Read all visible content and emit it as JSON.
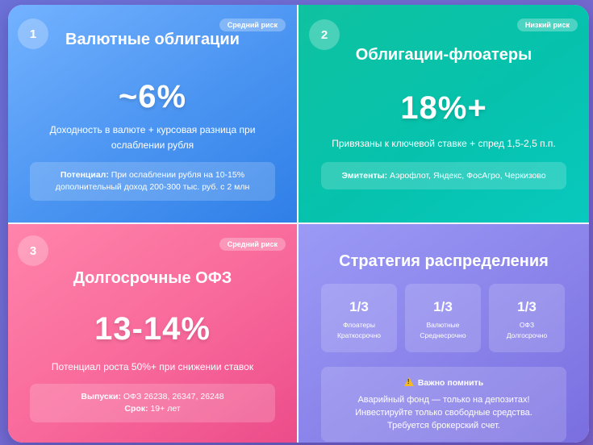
{
  "cards": [
    {
      "number": "1",
      "badge": "Средний риск",
      "title": "Валютные облигации",
      "value": "~6%",
      "desc_lines": [
        "Доходность в валюте + курсовая разница при",
        "ослаблении рубля"
      ],
      "box_label": "Потенциал:",
      "box_lines": [
        "При ослаблении рубля на 10-15%",
        "дополнительный доход 200-300 тыс. руб. с 2 млн"
      ]
    },
    {
      "number": "2",
      "badge": "Низкий риск",
      "title": "Облигации-флоатеры",
      "value": "18%+",
      "desc": "Привязаны к ключевой ставке + спред 1,5-2,5 п.п.",
      "box_label": "Эмитенты:",
      "box_text": "Аэрофлот, Яндекс, ФосАгро, Черкизово"
    },
    {
      "number": "3",
      "badge": "Средний риск",
      "title": "Долгосрочные ОФЗ",
      "value": "13-14%",
      "desc": "Потенциал роста 50%+ при снижении ставок",
      "box_label1": "Выпуски:",
      "box_text1": "ОФЗ 26238, 26347, 26248",
      "box_label2": "Срок:",
      "box_text2": "19+ лет"
    }
  ],
  "strategy": {
    "title": "Стратегия распределения",
    "items": [
      {
        "value": "1/3",
        "line1": "Флоатеры",
        "line2": "Краткосрочно"
      },
      {
        "value": "1/3",
        "line1": "Валютные",
        "line2": "Среднесрочно"
      },
      {
        "value": "1/3",
        "line1": "ОФЗ",
        "line2": "Долгосрочно"
      }
    ],
    "remember_title": "Важно помнить",
    "remember_icon": "warning-icon",
    "remember_lines": [
      "Аварийный фонд — только на депозитах!",
      "Инвестируйте только свободные средства.",
      "Требуется брокерский счет."
    ]
  }
}
